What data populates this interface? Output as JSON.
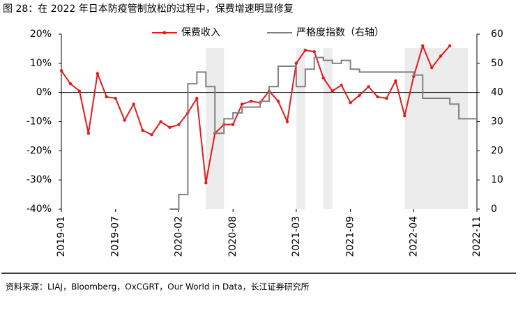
{
  "chart_data": {
    "type": "line",
    "title": "图 28：在 2022 年日本防疫管制放松的过程中，保费增速明显修复",
    "source": "资料来源：LIAJ，Bloomberg，OxCGRT，Our World in Data，长江证券研究所",
    "x": [
      "2019-01",
      "2019-02",
      "2019-03",
      "2019-04",
      "2019-05",
      "2019-06",
      "2019-07",
      "2019-08",
      "2019-09",
      "2019-10",
      "2019-11",
      "2019-12",
      "2020-01",
      "2020-02",
      "2020-03",
      "2020-04",
      "2020-05",
      "2020-06",
      "2020-07",
      "2020-08",
      "2020-09",
      "2020-10",
      "2020-11",
      "2020-12",
      "2021-01",
      "2021-02",
      "2021-03",
      "2021-04",
      "2021-05",
      "2021-06",
      "2021-07",
      "2021-08",
      "2021-09",
      "2021-10",
      "2021-11",
      "2021-12",
      "2022-01",
      "2022-02",
      "2022-03",
      "2022-04",
      "2022-05",
      "2022-06",
      "2022-07",
      "2022-08",
      "2022-09",
      "2022-10",
      "2022-11"
    ],
    "xlim": [
      "2019-01",
      "2022-11"
    ],
    "xticks": [
      "2019-01",
      "2019-07",
      "2020-02",
      "2020-08",
      "2021-03",
      "2021-09",
      "2022-04",
      "2022-11"
    ],
    "ylim": [
      -40,
      20
    ],
    "yticks": [
      {
        "value": -40,
        "label": "-40%"
      },
      {
        "value": -30,
        "label": "-30%"
      },
      {
        "value": -20,
        "label": "-20%"
      },
      {
        "value": -10,
        "label": "-10%"
      },
      {
        "value": 0,
        "label": "0%"
      },
      {
        "value": 10,
        "label": "10%"
      },
      {
        "value": 20,
        "label": "20%"
      }
    ],
    "y2lim": [
      0,
      60
    ],
    "y2ticks": [
      0,
      10,
      20,
      30,
      40,
      50,
      60
    ],
    "shaded": [
      [
        "2020-05",
        "2020-07"
      ],
      [
        "2021-03",
        "2021-04"
      ],
      [
        "2021-06",
        "2021-07"
      ],
      [
        "2022-03",
        "2022-10"
      ]
    ],
    "series": [
      {
        "name": "保费收入",
        "color": "#e31a1c",
        "markers": true,
        "values": [
          7.5,
          3,
          0.5,
          -14,
          6.5,
          -1.5,
          -2,
          -9.5,
          -4,
          -13,
          -14.5,
          -10,
          -12,
          -11,
          -7,
          -2,
          -31,
          -14,
          -11,
          -11,
          -4,
          -3,
          -3.5,
          0.5,
          -3,
          -10,
          10,
          14.5,
          14,
          5,
          0.5,
          2.5,
          -3.5,
          -1,
          2,
          -1.5,
          -2,
          4,
          -8,
          5.5,
          16,
          8.5,
          12.5,
          16,
          null,
          null,
          null
        ]
      },
      {
        "name": "严格度指数（右轴）",
        "color": "#808080",
        "axis": "y2",
        "step": true,
        "values": [
          null,
          null,
          null,
          null,
          null,
          null,
          null,
          null,
          null,
          null,
          null,
          null,
          0,
          5,
          43,
          47,
          42,
          26,
          31,
          33,
          35,
          35,
          37,
          42,
          49,
          49,
          42,
          48,
          52,
          51,
          50,
          51,
          48,
          47,
          47,
          47,
          47,
          47,
          47,
          46,
          38,
          38,
          38,
          36,
          31,
          31,
          31
        ]
      }
    ]
  }
}
